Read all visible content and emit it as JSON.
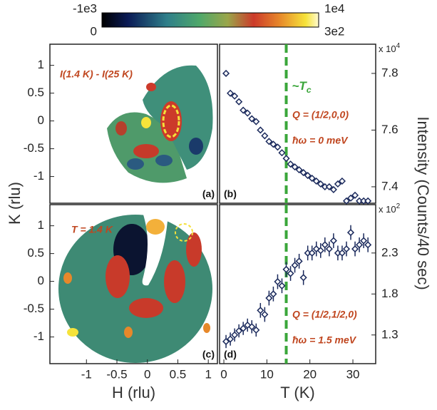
{
  "colorbar": {
    "top_left": "-1e3",
    "bottom_left": "0",
    "top_right": "1e4",
    "bottom_right": "3e2"
  },
  "chart_data": [
    {
      "type": "heatmap",
      "panel_label": "(a)",
      "annotation": "I(1.4 K) - I(25 K)",
      "ylabel": "K (rlu)",
      "xlim": [
        -1.6,
        1.15
      ],
      "ylim": [
        -1.48,
        1.38
      ],
      "yticks": [
        -1,
        -0.5,
        0,
        0.5,
        1
      ]
    },
    {
      "type": "scatter",
      "panel_label": "(b)",
      "ylabel": "Intensity (Counts/40 sec)",
      "y_multiplier": "x 10",
      "y_multiplier_exp": "4",
      "q_label": "Q = (1/2,0,0)",
      "energy_label": "ħω = 0 meV",
      "vline": 14.5,
      "vline_color": "#3aa63a",
      "vline_label": "~T",
      "vline_label_sub": "c",
      "color": "#1b2a5c",
      "xlim": [
        -1,
        35.3
      ],
      "ylim": [
        73420,
        79030
      ],
      "yticks": [
        {
          "value": 74000,
          "label": "7.4"
        },
        {
          "value": 76000,
          "label": "7.6"
        },
        {
          "value": 78000,
          "label": "7.8"
        }
      ],
      "x": [
        0.5,
        1.5,
        2.5,
        3.5,
        4.5,
        5.5,
        6.5,
        7.5,
        8.5,
        9.5,
        10.5,
        11.5,
        12.5,
        13.5,
        14.5,
        15.5,
        16.5,
        17.5,
        18.5,
        19.5,
        20.5,
        21.5,
        22.5,
        23.5,
        24.5,
        25.5,
        26.5,
        27.5,
        28.5,
        29.5,
        30.5,
        31.5,
        32.5,
        33.5
      ],
      "values": [
        78000,
        77300,
        77200,
        77000,
        76700,
        76600,
        76400,
        76300,
        76000,
        75800,
        75600,
        75500,
        75400,
        75200,
        75000,
        74800,
        74700,
        74600,
        74500,
        74400,
        74300,
        74200,
        74100,
        74000,
        74000,
        73900,
        74100,
        74200,
        73500,
        73600,
        73700,
        73500,
        73500,
        73500
      ]
    },
    {
      "type": "heatmap",
      "panel_label": "(c)",
      "annotation": "T = 1.4 K",
      "xlabel": "H (rlu)",
      "xlim": [
        -1.6,
        1.15
      ],
      "ylim": [
        -1.48,
        1.38
      ],
      "xticks": [
        -1,
        -0.5,
        0,
        0.5,
        1
      ],
      "yticks": [
        -1,
        -0.5,
        0,
        0.5,
        1
      ]
    },
    {
      "type": "scatter",
      "panel_label": "(d)",
      "xlabel": "T (K)",
      "y_multiplier": "x 10",
      "y_multiplier_exp": "2",
      "q_label": "Q = (1/2,1/2,0)",
      "energy_label": "ħω = 1.5 meV",
      "vline": 14.5,
      "vline_color": "#3aa63a",
      "color": "#1b2a5c",
      "xlim": [
        -1,
        35.3
      ],
      "ylim": [
        95,
        289
      ],
      "xticks": [
        0,
        10,
        20,
        30
      ],
      "yticks": [
        {
          "value": 130,
          "label": "1.3"
        },
        {
          "value": 180,
          "label": "1.8"
        },
        {
          "value": 230,
          "label": "2.3"
        }
      ],
      "x": [
        0.5,
        1.5,
        2.5,
        3.5,
        4.5,
        5.5,
        6.5,
        7.5,
        8.5,
        9.5,
        10.5,
        11.5,
        12.5,
        13.5,
        14.5,
        15.5,
        16.5,
        17.5,
        18.5,
        19.5,
        20.5,
        21.5,
        22.5,
        23.5,
        24.5,
        25.5,
        26.5,
        27.5,
        28.5,
        29.5,
        30.5,
        31.5,
        32.5,
        33.5
      ],
      "values": [
        122,
        125,
        130,
        135,
        138,
        142,
        140,
        136,
        160,
        155,
        175,
        180,
        195,
        190,
        210,
        205,
        215,
        220,
        200,
        230,
        230,
        235,
        233,
        240,
        235,
        245,
        230,
        230,
        235,
        255,
        235,
        240,
        245,
        240
      ],
      "errors": [
        8,
        8,
        8,
        8,
        8,
        8,
        8,
        8,
        9,
        9,
        9,
        9,
        9,
        9,
        9,
        9,
        9,
        9,
        9,
        9,
        9,
        9,
        9,
        9,
        9,
        9,
        9,
        9,
        9,
        9,
        9,
        9,
        9,
        9
      ]
    }
  ]
}
